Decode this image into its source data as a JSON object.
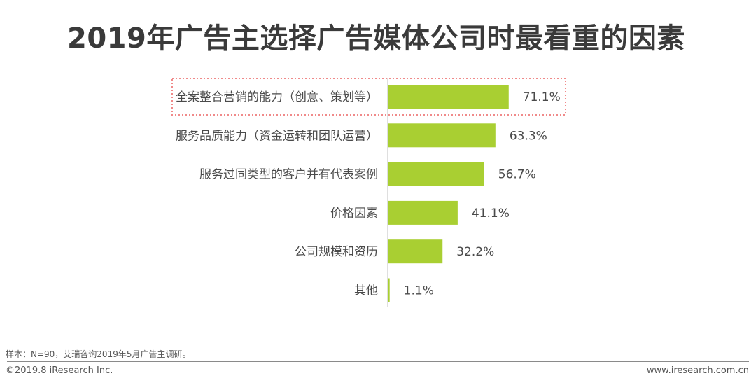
{
  "title": "2019年广告主选择广告媒体公司时最看重的因素",
  "chart_data": {
    "type": "bar",
    "orientation": "horizontal",
    "categories": [
      "全案整合营销的能力（创意、策划等）",
      "服务品质能力（资金运转和团队运营）",
      "服务过同类型的客户并有代表案例",
      "价格因素",
      "公司规模和资历",
      "其他"
    ],
    "values": [
      71.1,
      63.3,
      56.7,
      41.1,
      32.2,
      1.1
    ],
    "value_labels": [
      "71.1%",
      "63.3%",
      "56.7%",
      "41.1%",
      "32.2%",
      "1.1%"
    ],
    "xlim": [
      0,
      100
    ],
    "grid": false,
    "legend": "none",
    "bar_color": "#a9cf32",
    "highlight_index": 0,
    "highlight_color": "#f08a8a"
  },
  "footer": {
    "note": "样本：N=90，艾瑞咨询2019年5月广告主调研。",
    "copyright": "©2019.8 iResearch Inc.",
    "website": "www.iresearch.com.cn"
  }
}
